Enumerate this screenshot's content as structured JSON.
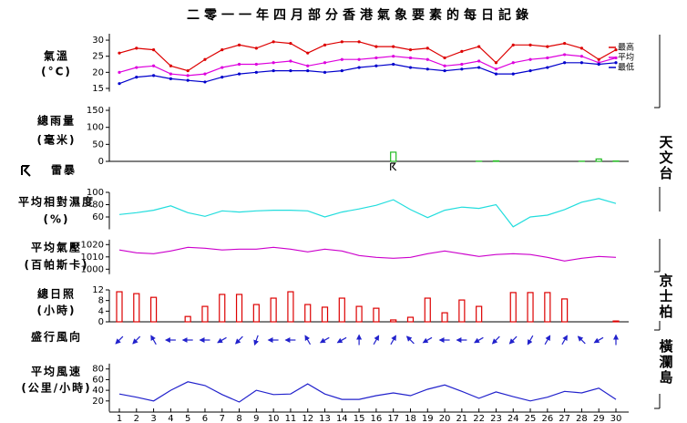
{
  "title": "二零一一年四月部分香港氣象要素的每日記錄",
  "stations": [
    "天文台",
    "京士柏",
    "橫瀾島"
  ],
  "categories": [
    1,
    2,
    3,
    4,
    5,
    6,
    7,
    8,
    9,
    10,
    11,
    12,
    13,
    14,
    15,
    16,
    17,
    18,
    19,
    20,
    21,
    22,
    23,
    24,
    25,
    26,
    27,
    28,
    29,
    30
  ],
  "chart_data": [
    {
      "type": "line",
      "label": [
        "氣溫",
        "(°C)"
      ],
      "ylim": [
        14,
        32
      ],
      "yticks": [
        15,
        20,
        25,
        30
      ],
      "series": [
        {
          "name": "最高",
          "color": "#dd0000",
          "values": [
            26,
            27.5,
            27,
            22,
            20.5,
            24,
            27,
            28.5,
            27.5,
            29.5,
            29,
            26,
            28.5,
            29.5,
            29.5,
            28,
            28,
            27,
            27.5,
            24.5,
            26.5,
            28,
            23,
            28.5,
            28.5,
            28,
            29,
            27.5,
            24,
            27
          ]
        },
        {
          "name": "平均",
          "color": "#dd00dd",
          "values": [
            20,
            21.5,
            22,
            19.5,
            19,
            19.5,
            21.5,
            22.5,
            22.5,
            23,
            23.5,
            22,
            23,
            24,
            24,
            24.5,
            25,
            24.5,
            24,
            22,
            22.5,
            23.5,
            21,
            23,
            24,
            24.5,
            25.5,
            25,
            23,
            24.5
          ]
        },
        {
          "name": "最低",
          "color": "#0000cc",
          "values": [
            16.5,
            18.5,
            19,
            18,
            17.5,
            17,
            18.5,
            19.5,
            20,
            20.5,
            20.5,
            20.5,
            20,
            20.5,
            21.5,
            22,
            22.5,
            21.5,
            21,
            20.5,
            21,
            21.5,
            19.5,
            19.5,
            20.5,
            21.5,
            23,
            23,
            22.5,
            23
          ]
        }
      ]
    },
    {
      "type": "bar",
      "label": [
        "總雨量",
        "(毫米)"
      ],
      "ylim": [
        0,
        160
      ],
      "yticks": [
        0,
        50,
        100,
        150
      ],
      "color": "#22bb22",
      "values": [
        0,
        0,
        0,
        0,
        0,
        0,
        0,
        0,
        0,
        0,
        0,
        0,
        0,
        0,
        0,
        0,
        27,
        0,
        0,
        0,
        0,
        0.5,
        1.5,
        0,
        0,
        0,
        0,
        0.5,
        7,
        1
      ]
    },
    {
      "type": "symbol",
      "label": [
        "雷暴"
      ],
      "x": [
        17
      ]
    },
    {
      "type": "line",
      "label": [
        "平均相對濕度",
        "(%)"
      ],
      "ylim": [
        40,
        100
      ],
      "yticks": [
        60,
        80,
        100
      ],
      "series": [
        {
          "color": "#22dddd",
          "values": [
            64,
            67,
            71,
            78,
            67,
            61,
            70,
            68,
            70,
            71,
            71,
            70,
            60,
            68,
            73,
            79,
            88,
            72,
            59,
            71,
            76,
            74,
            80,
            44,
            60,
            63,
            72,
            84,
            90,
            82
          ]
        }
      ]
    },
    {
      "type": "line",
      "label": [
        "平均氣壓",
        "(百帕斯卡)"
      ],
      "ylim": [
        996,
        1024
      ],
      "yticks": [
        1000,
        1010,
        1020
      ],
      "series": [
        {
          "color": "#cc00cc",
          "values": [
            1015.6,
            1013.3,
            1012.6,
            1014.8,
            1017.8,
            1017,
            1015.6,
            1016.3,
            1016.3,
            1017.8,
            1016.3,
            1014.1,
            1016.3,
            1014.8,
            1011.1,
            1009.6,
            1008.9,
            1009.6,
            1012.6,
            1014.8,
            1012.6,
            1010.4,
            1011.9,
            1012.6,
            1011.9,
            1009.6,
            1006.7,
            1008.9,
            1010.4,
            1009.6
          ]
        }
      ]
    },
    {
      "type": "bar",
      "label": [
        "總日照",
        "(小時)"
      ],
      "ylim": [
        0,
        12
      ],
      "yticks": [
        0,
        4,
        8,
        12
      ],
      "color": "#dd0000",
      "values": [
        11.3,
        10.6,
        9.2,
        0,
        2,
        5.8,
        10.3,
        10.3,
        6.5,
        8.9,
        11.3,
        6.5,
        5.5,
        8.9,
        5.8,
        5.1,
        0.7,
        1.7,
        8.9,
        3.4,
        8.2,
        5.8,
        0,
        11,
        11,
        11,
        8.6,
        0,
        0,
        0.3
      ]
    },
    {
      "type": "arrow",
      "label": [
        "盛行風向"
      ],
      "color": "#2222cc",
      "values": [
        45,
        45,
        150,
        90,
        90,
        90,
        60,
        45,
        20,
        90,
        90,
        150,
        60,
        60,
        180,
        210,
        210,
        135,
        60,
        90,
        90,
        60,
        45,
        45,
        30,
        210,
        210,
        135,
        60,
        180
      ]
    },
    {
      "type": "line",
      "label": [
        "平均風速",
        "(公里/小時)"
      ],
      "ylim": [
        0,
        90
      ],
      "yticks": [
        20,
        40,
        60,
        80
      ],
      "series": [
        {
          "color": "#2222cc",
          "values": [
            33,
            27,
            20,
            40,
            56,
            49,
            32,
            18,
            40,
            32,
            33,
            52,
            33,
            23,
            23,
            30,
            35,
            30,
            42,
            50,
            38,
            25,
            37,
            28,
            20,
            27,
            38,
            35,
            44,
            23
          ]
        }
      ]
    }
  ]
}
